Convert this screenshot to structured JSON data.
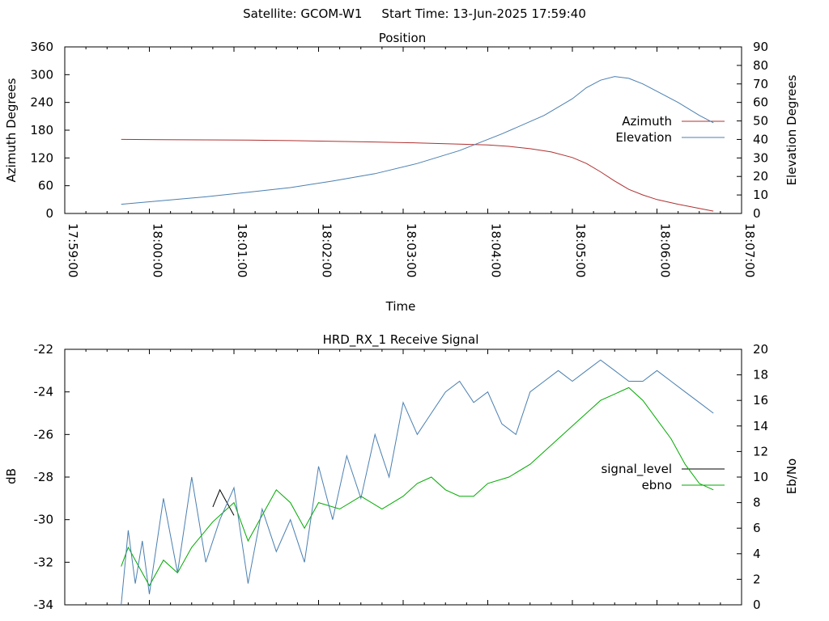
{
  "header": {
    "satellite_label": "Satellite: GCOM-W1",
    "start_time_label": "Start Time: 13-Jun-2025 17:59:40"
  },
  "chart_data": [
    {
      "type": "line",
      "title": "Position",
      "xlabel": "Time",
      "ylabel": "Azimuth Degrees",
      "y2label": "Elevation Degrees",
      "x_ticks": [
        "17:59:00",
        "18:00:00",
        "18:01:00",
        "18:02:00",
        "18:03:00",
        "18:04:00",
        "18:05:00",
        "18:06:00",
        "18:07:00"
      ],
      "xlim": [
        "17:59:00",
        "18:07:00"
      ],
      "ylim": [
        0,
        360
      ],
      "y_ticks": [
        0,
        60,
        120,
        180,
        240,
        300,
        360
      ],
      "y2lim": [
        0,
        90
      ],
      "y2_ticks": [
        0,
        10,
        20,
        30,
        40,
        50,
        60,
        70,
        80,
        90
      ],
      "legend_position": "right",
      "series": [
        {
          "name": "Azimuth",
          "axis": "y",
          "color": "#b03030",
          "x": [
            "17:59:40",
            "18:00:10",
            "18:00:40",
            "18:01:10",
            "18:01:40",
            "18:02:10",
            "18:02:40",
            "18:03:10",
            "18:03:40",
            "18:04:00",
            "18:04:15",
            "18:04:30",
            "18:04:45",
            "18:05:00",
            "18:05:10",
            "18:05:20",
            "18:05:30",
            "18:05:40",
            "18:05:50",
            "18:06:00",
            "18:06:15",
            "18:06:30",
            "18:06:40"
          ],
          "values": [
            160,
            159.5,
            159,
            158.5,
            157.5,
            156,
            154.5,
            152.5,
            150,
            148,
            145,
            140,
            133,
            121,
            108,
            90,
            70,
            52,
            40,
            30,
            20,
            11,
            5
          ]
        },
        {
          "name": "Elevation",
          "axis": "y2",
          "color": "#4a7fb0",
          "x": [
            "17:59:40",
            "18:00:10",
            "18:00:40",
            "18:01:10",
            "18:01:40",
            "18:02:10",
            "18:02:40",
            "18:03:10",
            "18:03:40",
            "18:04:10",
            "18:04:40",
            "18:05:00",
            "18:05:10",
            "18:05:20",
            "18:05:30",
            "18:05:40",
            "18:05:50",
            "18:06:00",
            "18:06:15",
            "18:06:30",
            "18:06:40"
          ],
          "values": [
            5,
            7,
            9,
            11.5,
            14,
            17.5,
            21.5,
            27,
            34,
            43,
            53,
            62,
            68,
            72,
            74,
            73,
            70,
            66,
            60,
            53,
            49
          ]
        }
      ]
    },
    {
      "type": "line",
      "title": "HRD_RX_1 Receive Signal",
      "xlabel": "",
      "ylabel": "dB",
      "y2label": "Eb/No",
      "xlim": [
        "17:59:00",
        "18:07:00"
      ],
      "ylim": [
        -34,
        -22
      ],
      "y_ticks": [
        -34,
        -32,
        -30,
        -28,
        -26,
        -24,
        -22
      ],
      "y2lim": [
        0,
        20
      ],
      "y2_ticks": [
        0,
        2,
        4,
        6,
        8,
        10,
        12,
        14,
        16,
        18,
        20
      ],
      "legend_position": "right",
      "series": [
        {
          "name": "signal_level",
          "axis": "y",
          "color": "#000000",
          "x": [
            "18:00:45",
            "18:00:50",
            "18:00:55",
            "18:01:00"
          ],
          "values": [
            -29.4,
            -28.6,
            -29.2,
            -29.8
          ]
        },
        {
          "name": "ebno",
          "axis": "y2",
          "color": "#00aa00",
          "x": [
            "17:59:40",
            "17:59:45",
            "17:59:50",
            "17:59:55",
            "18:00:00",
            "18:00:10",
            "18:00:20",
            "18:00:30",
            "18:00:45",
            "18:01:00",
            "18:01:10",
            "18:01:20",
            "18:01:30",
            "18:01:40",
            "18:01:50",
            "18:02:00",
            "18:02:15",
            "18:02:30",
            "18:02:45",
            "18:03:00",
            "18:03:10",
            "18:03:20",
            "18:03:30",
            "18:03:40",
            "18:03:50",
            "18:04:00",
            "18:04:15",
            "18:04:30",
            "18:04:45",
            "18:05:00",
            "18:05:10",
            "18:05:20",
            "18:05:30",
            "18:05:40",
            "18:05:50",
            "18:06:00",
            "18:06:10",
            "18:06:20",
            "18:06:30",
            "18:06:40"
          ],
          "values": [
            3,
            4.5,
            3.5,
            2.5,
            1.5,
            3.5,
            2.5,
            4.5,
            6.5,
            8,
            5,
            7,
            9,
            8,
            6,
            8,
            7.5,
            8.5,
            7.5,
            8.5,
            9.5,
            10,
            9,
            8.5,
            8.5,
            9.5,
            10,
            11,
            12.5,
            14,
            15,
            16,
            16.5,
            17,
            16,
            14.5,
            13,
            11,
            9.5,
            9
          ]
        },
        {
          "name": "",
          "axis": "y",
          "color": "#4a7fb0",
          "x": [
            "17:59:40",
            "17:59:45",
            "17:59:50",
            "17:59:55",
            "18:00:00",
            "18:00:10",
            "18:00:20",
            "18:00:30",
            "18:00:40",
            "18:00:50",
            "18:01:00",
            "18:01:10",
            "18:01:20",
            "18:01:30",
            "18:01:40",
            "18:01:50",
            "18:02:00",
            "18:02:10",
            "18:02:20",
            "18:02:30",
            "18:02:40",
            "18:02:50",
            "18:03:00",
            "18:03:10",
            "18:03:20",
            "18:03:30",
            "18:03:40",
            "18:03:50",
            "18:04:00",
            "18:04:10",
            "18:04:20",
            "18:04:30",
            "18:04:40",
            "18:04:50",
            "18:05:00",
            "18:05:10",
            "18:05:20",
            "18:05:30",
            "18:05:40",
            "18:05:50",
            "18:06:00",
            "18:06:10",
            "18:06:20",
            "18:06:30",
            "18:06:40"
          ],
          "values": [
            -34,
            -30.5,
            -33,
            -31,
            -33.5,
            -29,
            -32.5,
            -28,
            -32,
            -30,
            -28.5,
            -33,
            -29.5,
            -31.5,
            -30,
            -32,
            -27.5,
            -30,
            -27,
            -29,
            -26,
            -28,
            -24.5,
            -26,
            -25,
            -24,
            -23.5,
            -24.5,
            -24,
            -25.5,
            -26,
            -24,
            -23.5,
            -23,
            -23.5,
            -23,
            -22.5,
            -23,
            -23.5,
            -23.5,
            -23,
            -23.5,
            -24,
            -24.5,
            -25
          ]
        }
      ]
    }
  ]
}
